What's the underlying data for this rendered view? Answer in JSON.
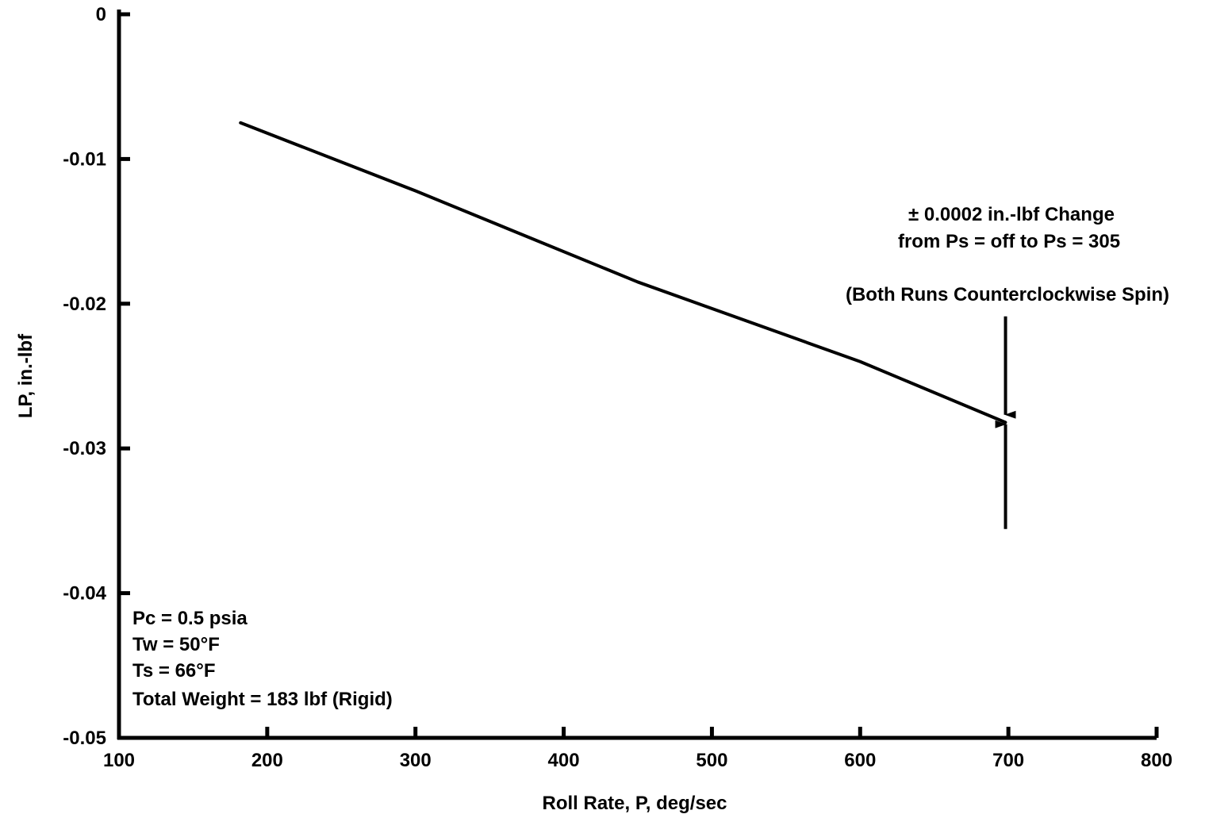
{
  "chart_data": {
    "type": "line",
    "title": "",
    "xlabel": "Roll Rate, P, deg/sec",
    "ylabel": "LP, in.-lbf",
    "xlim": [
      100,
      800
    ],
    "ylim": [
      -0.05,
      0
    ],
    "x_ticks": [
      100,
      200,
      300,
      400,
      500,
      600,
      700,
      800
    ],
    "x_tick_labels": [
      "100",
      "200",
      "300",
      "400",
      "500",
      "600",
      "700",
      "800"
    ],
    "y_ticks": [
      0,
      -0.01,
      -0.02,
      -0.03,
      -0.04,
      -0.05
    ],
    "y_tick_labels": [
      "0",
      "-0.01",
      "-0.02",
      "-0.03",
      "-0.04",
      "-0.05"
    ],
    "grid": false,
    "legend": "none",
    "series": [
      {
        "x": [
          182,
          300,
          450,
          600,
          698
        ],
        "y": [
          -0.0075,
          -0.0122,
          -0.0185,
          -0.024,
          -0.0282
        ]
      }
    ],
    "annotations": {
      "change_line1": "± 0.0002 in.-lbf Change",
      "change_line2": "from Ps  =  off to Ps  =  305",
      "runs_note": "(Both Runs Counterclockwise Spin)",
      "arrow_at": {
        "x": 697,
        "y": -0.028
      },
      "conditions": [
        "Pc  =  0.5 psia",
        "Tw  =  50°F",
        "Ts  =  66°F",
        "Total Weight  =  183 lbf (Rigid)"
      ]
    },
    "colors": {
      "line": "#000000",
      "axis": "#000000",
      "background": "#ffffff"
    }
  }
}
